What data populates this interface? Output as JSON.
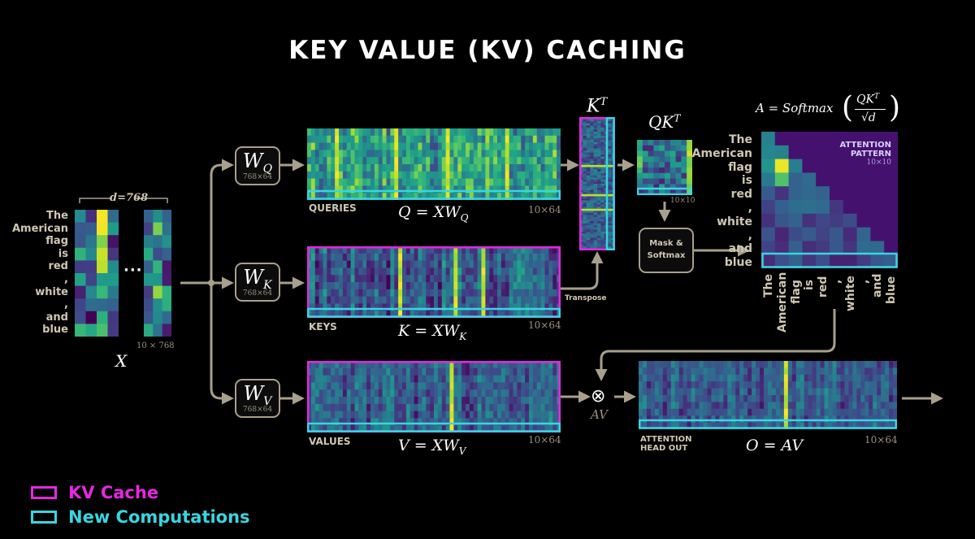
{
  "title": "KEY VALUE (KV) CACHING",
  "colors": {
    "kv_cache": "#e528e0",
    "new_computations": "#38d6e0",
    "arrow": "#a89f8c"
  },
  "input": {
    "label": "X",
    "dim_label": "d=768",
    "size_label": "10 × 768",
    "ellipsis": "···",
    "tokens": [
      "The",
      "American",
      "flag",
      "is",
      "red",
      ",",
      "white",
      ",",
      "and",
      "blue"
    ]
  },
  "weights": [
    {
      "symbol": "W",
      "sub": "Q",
      "size": "768×64"
    },
    {
      "symbol": "W",
      "sub": "K",
      "size": "768×64"
    },
    {
      "symbol": "W",
      "sub": "V",
      "size": "768×64"
    }
  ],
  "queries": {
    "label": "QUERIES",
    "equation": "Q = XW",
    "sub": "Q",
    "size": "10×64"
  },
  "keys": {
    "label": "KEYS",
    "equation": "K = XW",
    "sub": "K",
    "size": "10×64"
  },
  "values": {
    "label": "VALUES",
    "equation": "V = XW",
    "sub": "V",
    "size": "10×64"
  },
  "kt": {
    "label": "K",
    "sup": "T",
    "transpose_label": "Transpose"
  },
  "qkt": {
    "label": "QK",
    "sup": "T",
    "size": "10×10"
  },
  "mask": {
    "line1": "Mask &",
    "line2": "Softmax"
  },
  "attention": {
    "formula_prefix": "A = Softmax",
    "formula_num": "QK",
    "formula_sup": "T",
    "formula_den": "√d",
    "pattern_label_1": "ATTENTION",
    "pattern_label_2": "PATTERN",
    "size": "10×10",
    "tokens": [
      "The",
      "American",
      "flag",
      "is",
      "red",
      ",",
      "white",
      ",",
      "and",
      "blue"
    ]
  },
  "av": {
    "label": "AV",
    "op": "⊗"
  },
  "output": {
    "label_1": "ATTENTION",
    "label_2": "HEAD OUT",
    "equation": "O = AV",
    "size": "10×64"
  },
  "legend": [
    {
      "label": "KV Cache",
      "color": "#e528e0"
    },
    {
      "label": "New Computations",
      "color": "#38d6e0"
    }
  ]
}
